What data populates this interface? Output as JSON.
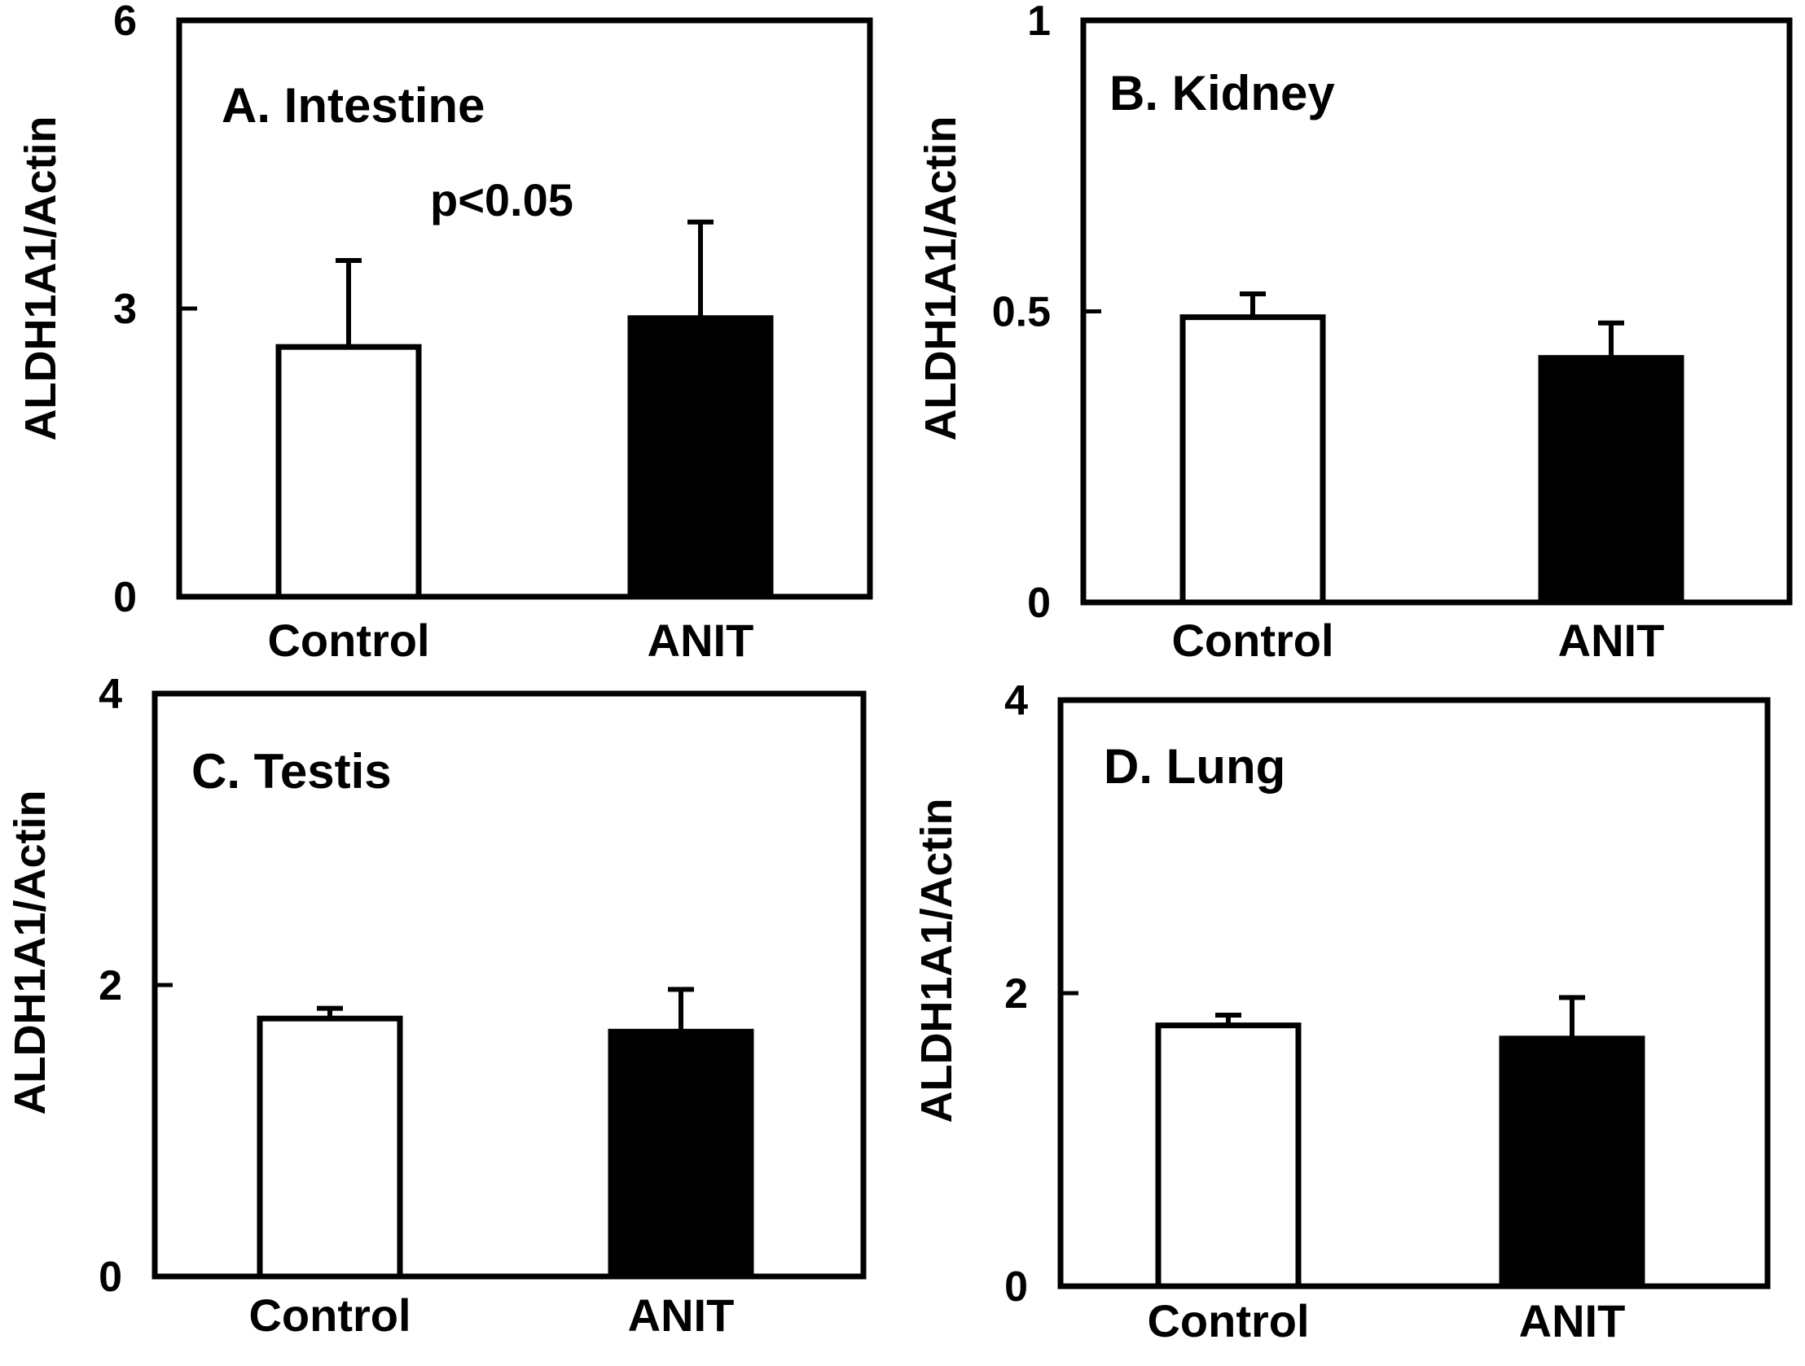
{
  "chart_data": [
    {
      "type": "bar",
      "title": "A. Intestine",
      "ylabel": "ALDH1A1/Actin",
      "categories": [
        "Control",
        "ANIT"
      ],
      "values": [
        2.6,
        2.9
      ],
      "errors": [
        0.9,
        1.0
      ],
      "fills": [
        "#ffffff",
        "#000000"
      ],
      "ylim": [
        0,
        6
      ],
      "yticks": [
        0,
        3,
        6
      ],
      "yticklabels": [
        "0",
        "3",
        "6"
      ],
      "annotation": "p<0.05"
    },
    {
      "type": "bar",
      "title": "B. Kidney",
      "ylabel": "ALDH1A1/Actin",
      "categories": [
        "Control",
        "ANIT"
      ],
      "values": [
        0.49,
        0.42
      ],
      "errors": [
        0.04,
        0.06
      ],
      "fills": [
        "#ffffff",
        "#000000"
      ],
      "ylim": [
        0,
        1
      ],
      "yticks": [
        0,
        0.5,
        1
      ],
      "yticklabels": [
        "0",
        "0.5",
        "1"
      ]
    },
    {
      "type": "bar",
      "title": "C. Testis",
      "ylabel": "ALDH1A1/Actin",
      "categories": [
        "Control",
        "ANIT"
      ],
      "values": [
        1.77,
        1.68
      ],
      "errors": [
        0.07,
        0.29
      ],
      "fills": [
        "#ffffff",
        "#000000"
      ],
      "ylim": [
        0,
        4
      ],
      "yticks": [
        0,
        2,
        4
      ],
      "yticklabels": [
        "0",
        "2",
        "4"
      ]
    },
    {
      "type": "bar",
      "title": "D. Lung",
      "ylabel": "ALDH1A1/Actin",
      "categories": [
        "Control",
        "ANIT"
      ],
      "values": [
        1.78,
        1.69
      ],
      "errors": [
        0.07,
        0.28
      ],
      "fills": [
        "#ffffff",
        "#000000"
      ],
      "ylim": [
        0,
        4
      ],
      "yticks": [
        0,
        2,
        4
      ],
      "yticklabels": [
        "0",
        "2",
        "4"
      ]
    }
  ]
}
